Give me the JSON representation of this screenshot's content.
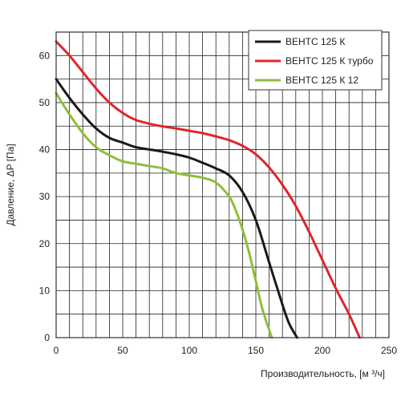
{
  "chart_data": {
    "type": "line",
    "xlabel": "Производительность, [м ³/ч]",
    "ylabel": "Давление, ΔP [Па]",
    "xlim": [
      0,
      250
    ],
    "ylim": [
      0,
      65
    ],
    "x_ticks": [
      0,
      50,
      100,
      150,
      200,
      250
    ],
    "y_ticks": [
      0,
      10,
      20,
      30,
      40,
      50,
      60
    ],
    "x_tick_labels": [
      "0",
      "50",
      "100",
      "150",
      "200",
      "250"
    ],
    "y_tick_labels": [
      "0",
      "10",
      "20",
      "30",
      "40",
      "50",
      "60"
    ],
    "grid": true,
    "legend_position": "top-right",
    "series": [
      {
        "name": "ВЕНТС 125 К",
        "color": "#1a1a1a",
        "x": [
          0,
          10,
          20,
          30,
          40,
          50,
          60,
          75,
          90,
          100,
          110,
          120,
          130,
          140,
          150,
          160,
          170,
          175,
          181
        ],
        "y": [
          55,
          51,
          47.5,
          44.5,
          42.5,
          41.5,
          40.5,
          39.8,
          39,
          38.3,
          37.2,
          36,
          34.5,
          31,
          25,
          16,
          7,
          3,
          0
        ]
      },
      {
        "name": "ВЕНТС 125 К турбо",
        "color": "#e0262a",
        "x": [
          0,
          10,
          20,
          30,
          40,
          50,
          60,
          75,
          90,
          100,
          110,
          120,
          130,
          140,
          150,
          160,
          170,
          180,
          190,
          200,
          210,
          220,
          228
        ],
        "y": [
          63,
          60,
          56.5,
          53,
          50,
          47.8,
          46.3,
          45.2,
          44.5,
          44,
          43.5,
          42.8,
          42,
          40.8,
          39,
          36.2,
          32.5,
          28,
          22.5,
          16.5,
          10.5,
          5,
          0
        ]
      },
      {
        "name": "ВЕНТС 125 К 12",
        "color": "#8fbe3c",
        "x": [
          0,
          10,
          20,
          30,
          40,
          50,
          60,
          70,
          80,
          90,
          100,
          110,
          120,
          130,
          135,
          140,
          145,
          150,
          155,
          162
        ],
        "y": [
          52,
          47.5,
          43.5,
          40.5,
          38.8,
          37.5,
          37,
          36.5,
          36,
          35,
          34.5,
          34,
          33,
          30,
          27,
          23,
          18,
          12,
          6,
          0
        ]
      }
    ]
  }
}
